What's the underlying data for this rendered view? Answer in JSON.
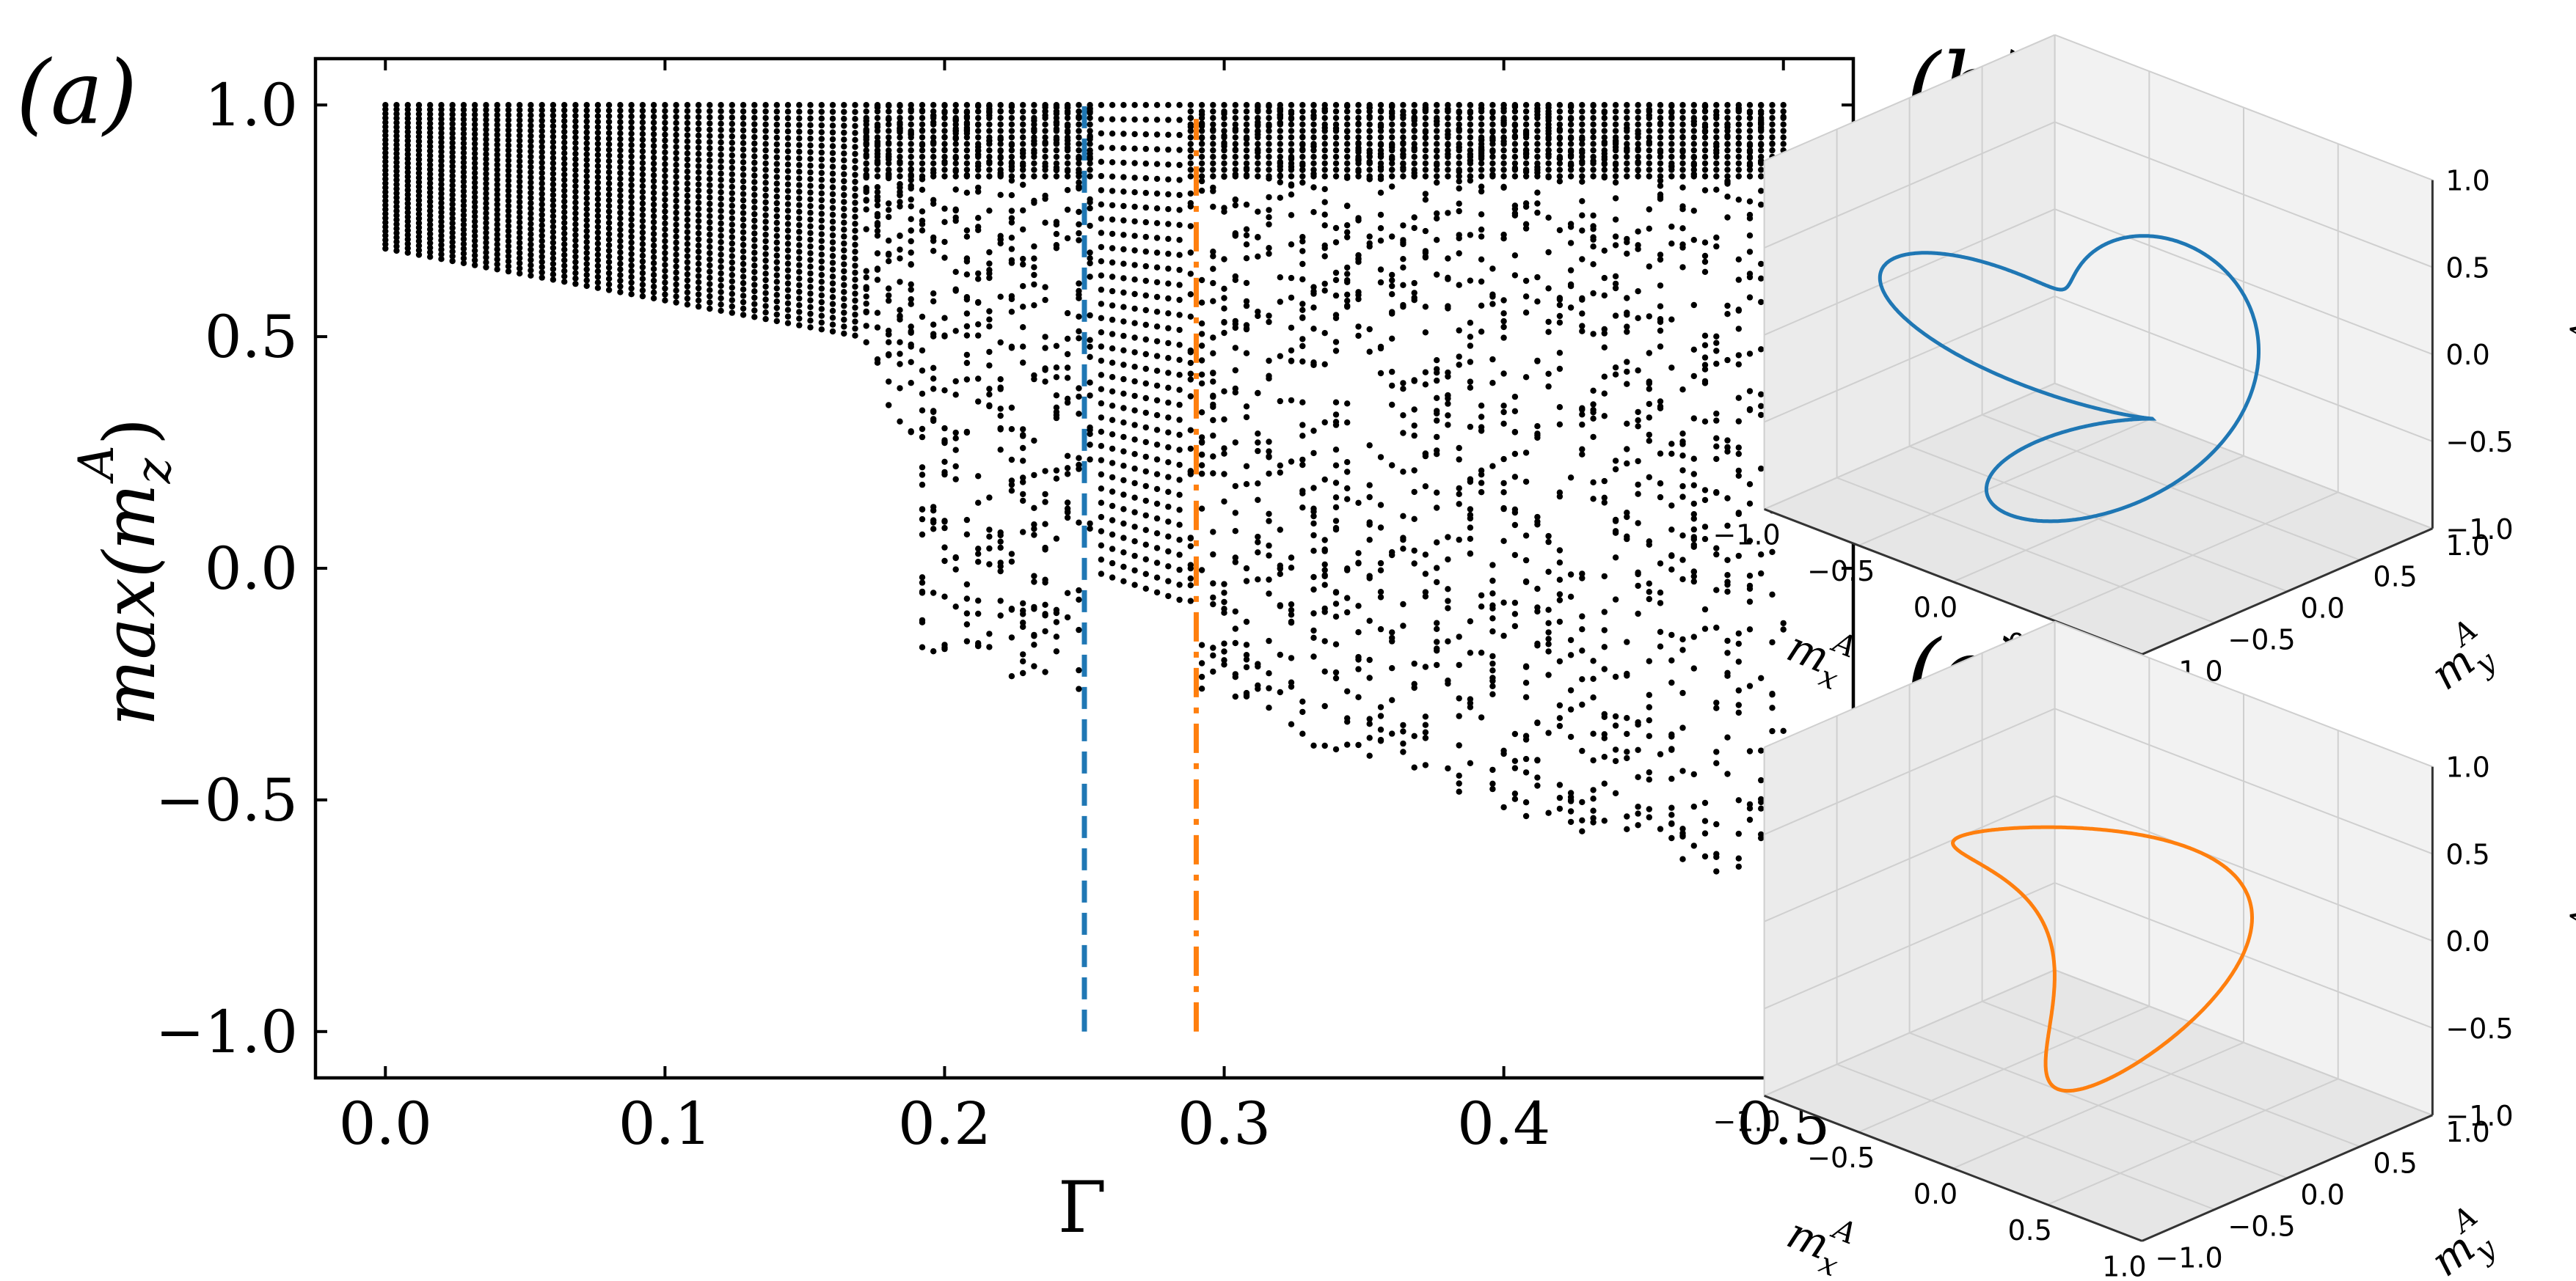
{
  "chart_data": [
    {
      "panel": "(a)",
      "type": "scatter",
      "xlabel": "Γ",
      "ylabel": "max(m_z^A)",
      "xlim": [
        -0.025,
        0.525
      ],
      "ylim": [
        -1.1,
        1.1
      ],
      "xticks": [
        "0.0",
        "0.1",
        "0.2",
        "0.3",
        "0.4",
        "0.5"
      ],
      "yticks": [
        "−1.0",
        "−0.5",
        "0.0",
        "0.5",
        "1.0"
      ],
      "grid": false,
      "x_range": [
        0.0,
        0.5
      ],
      "y_upper_bound": 1.0,
      "description_of_points": "Black dots: bifurcation diagram; for each Γ the sampled maxima of m_z^A. Lower envelope ≈0.69 at Γ=0 decreasing slowly to ≈0.5 at Γ≈0.17, then spreading down to ≈−0.2 for Γ≈0.19–0.24 and to ≈−0.72 near Γ=0.5.",
      "markers": [
        {
          "x": 0.25,
          "y_range": [
            -1.0,
            1.0
          ],
          "style": "dashed",
          "color": "#1f77b4"
        },
        {
          "x": 0.29,
          "y_range": [
            -1.0,
            0.97
          ],
          "style": "dash-dot",
          "color": "#ff7f0e"
        }
      ]
    },
    {
      "panel": "(b)",
      "type": "line",
      "projection": "3d",
      "color": "#1f77b4",
      "xlabel": "m_x^A",
      "ylabel": "m_y^A",
      "zlabel": "m_z^A",
      "xticks": [
        "−1.0",
        "−0.5",
        "0.0",
        "0.5",
        "1.0"
      ],
      "yticks": [
        "−1.0",
        "−0.5",
        "0.0",
        "0.5",
        "1.0"
      ],
      "zticks": [
        "−1.0",
        "−0.5",
        "0.0",
        "0.5",
        "1.0"
      ]
    },
    {
      "panel": "(c)",
      "type": "line",
      "projection": "3d",
      "color": "#ff7f0e",
      "xlabel": "m_x^A",
      "ylabel": "m_y^A",
      "zlabel": "m_z^A",
      "xticks": [
        "−1.0",
        "−0.5",
        "0.0",
        "0.5",
        "1.0"
      ],
      "yticks": [
        "−1.0",
        "−0.5",
        "0.0",
        "0.5",
        "1.0"
      ],
      "zticks": [
        "−1.0",
        "−0.5",
        "0.0",
        "0.5",
        "1.0"
      ]
    }
  ],
  "labels": {
    "panel_a": "(a)",
    "panel_b": "(b)",
    "panel_c": "(c)",
    "xlabel_a": "Γ",
    "ylabel_a_main": "max(m",
    "ylabel_a_sub": "z",
    "ylabel_a_sup": "A",
    "ylabel_a_close": ")",
    "axis3d_x": "m",
    "axis3d_x_sub": "x",
    "axis3d_y": "m",
    "axis3d_y_sub": "y",
    "axis3d_z": "m",
    "axis3d_z_sub": "z",
    "axis3d_sup": "A"
  }
}
